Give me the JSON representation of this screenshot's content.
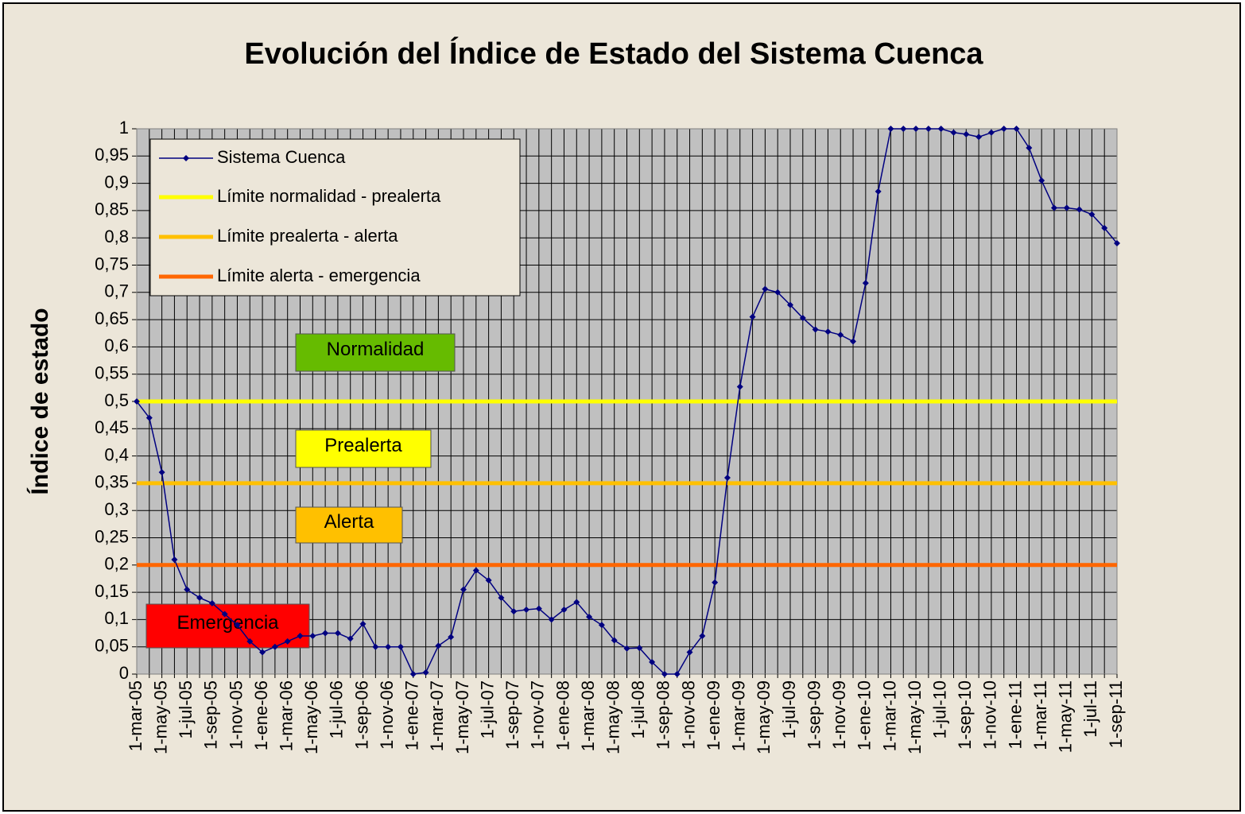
{
  "chart_data": {
    "type": "line",
    "title": "Evolución del Índice de Estado del Sistema Cuenca",
    "y_label": "Índice de estado",
    "categories": [
      "1-mar-05",
      null,
      "1-may-05",
      null,
      "1-jul-05",
      null,
      "1-sep-05",
      null,
      "1-nov-05",
      null,
      "1-ene-06",
      null,
      "1-mar-06",
      null,
      "1-may-06",
      null,
      "1-jul-06",
      null,
      "1-sep-06",
      null,
      "1-nov-06",
      null,
      "1-ene-07",
      null,
      "1-mar-07",
      null,
      "1-may-07",
      null,
      "1-jul-07",
      null,
      "1-sep-07",
      null,
      "1-nov-07",
      null,
      "1-ene-08",
      null,
      "1-mar-08",
      null,
      "1-may-08",
      null,
      "1-jul-08",
      null,
      "1-sep-08",
      null,
      "1-nov-08",
      null,
      "1-ene-09",
      null,
      "1-mar-09",
      null,
      "1-may-09",
      null,
      "1-jul-09",
      null,
      "1-sep-09",
      null,
      "1-nov-09",
      null,
      "1-ene-10",
      null,
      "1-mar-10",
      null,
      "1-may-10",
      null,
      "1-jul-10",
      null,
      "1-sep-10",
      null,
      "1-nov-10",
      null,
      "1-ene-11",
      null,
      "1-mar-11",
      null,
      "1-may-11",
      null,
      "1-jul-11",
      null,
      "1-sep-11"
    ],
    "series": [
      {
        "name": "Sistema Cuenca",
        "color": "#000080",
        "values": [
          0.5,
          0.47,
          0.37,
          0.21,
          0.155,
          0.14,
          0.13,
          0.11,
          0.09,
          0.06,
          0.04,
          0.05,
          0.06,
          0.07,
          0.07,
          0.075,
          0.075,
          0.065,
          0.092,
          0.05,
          0.05,
          0.05,
          0,
          0.003,
          0.052,
          0.068,
          0.155,
          0.19,
          0.172,
          0.14,
          0.115,
          0.118,
          0.12,
          0.1,
          0.118,
          0.132,
          0.105,
          0.09,
          0.062,
          0.047,
          0.048,
          0.022,
          0,
          0,
          0.04,
          0.07,
          0.168,
          0.36,
          0.527,
          0.655,
          0.706,
          0.7,
          0.677,
          0.653,
          0.632,
          0.628,
          0.622,
          0.61,
          0.717,
          0.885,
          1,
          1,
          1,
          1,
          1,
          0.993,
          0.99,
          0.985,
          0.993,
          1,
          1,
          0.965,
          0.905,
          0.855,
          0.855,
          0.852,
          0.843,
          0.818,
          0.79
        ]
      }
    ],
    "reference_lines": [
      {
        "name": "Límite normalidad - prealerta",
        "color": "#ffff00",
        "value": 0.5
      },
      {
        "name": "Límite prealerta - alerta",
        "color": "#ffc000",
        "value": 0.35
      },
      {
        "name": "Límite alerta - emergencia",
        "color": "#ff6600",
        "value": 0.2
      }
    ],
    "annotations": [
      {
        "text": "Normalidad",
        "color": "#66bb00"
      },
      {
        "text": "Prealerta",
        "color": "#ffff00"
      },
      {
        "text": "Alerta",
        "color": "#ffc000"
      },
      {
        "text": "Emergencia",
        "color": "#ff0000"
      }
    ],
    "ylim": [
      0,
      1
    ],
    "yticks": [
      0,
      {
        "value": 0.05,
        "label": "0,05"
      },
      {
        "value": 0.1,
        "label": "0,1"
      },
      {
        "value": 0.15,
        "label": "0,15"
      },
      {
        "value": 0.2,
        "label": "0,2"
      },
      {
        "value": 0.25,
        "label": "0,25"
      },
      {
        "value": 0.3,
        "label": "0,3"
      },
      {
        "value": 0.35,
        "label": "0,35"
      },
      {
        "value": 0.4,
        "label": "0,4"
      },
      {
        "value": 0.45,
        "label": "0,45"
      },
      {
        "value": 0.5,
        "label": "0,5"
      },
      {
        "value": 0.55,
        "label": "0,55"
      },
      {
        "value": 0.6,
        "label": "0,6"
      },
      {
        "value": 0.65,
        "label": "0,65"
      },
      {
        "value": 0.7,
        "label": "0,7"
      },
      {
        "value": 0.75,
        "label": "0,75"
      },
      {
        "value": 0.8,
        "label": "0,8"
      },
      {
        "value": 0.85,
        "label": "0,85"
      },
      {
        "value": 0.9,
        "label": "0,9"
      },
      {
        "value": 0.95,
        "label": "0,95"
      },
      1
    ],
    "grid": true
  }
}
